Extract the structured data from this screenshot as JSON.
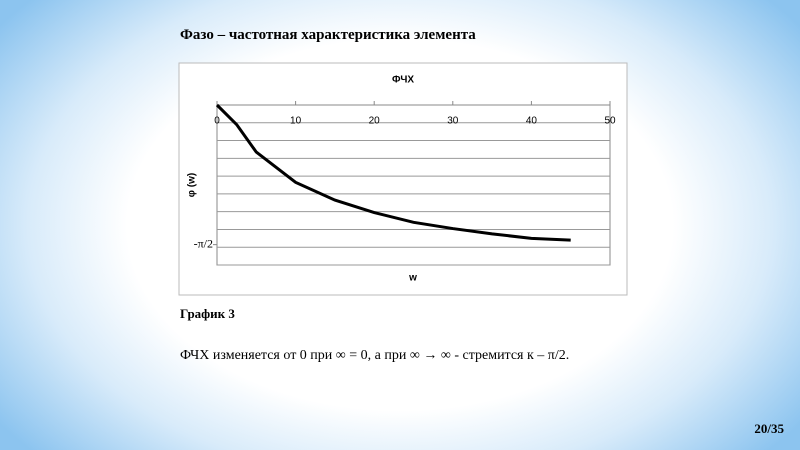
{
  "slide": {
    "title": "Фазо – частотная характеристика элемента",
    "caption": "График 3",
    "text": "ФЧХ изменяется от 0 при ∞ = 0, а при ∞ → ∞ - стремится к – π/2.",
    "page": "20/35"
  },
  "chart_data": {
    "type": "line",
    "title": "ФЧХ",
    "x_label": "w",
    "y_label": "φ (w)",
    "x": [
      0,
      2.5,
      5,
      10,
      15,
      20,
      25,
      30,
      35,
      40,
      45
    ],
    "series": [
      {
        "color": "#000000",
        "values": [
          0,
          -0.22,
          -0.53,
          -0.87,
          -1.07,
          -1.21,
          -1.32,
          -1.39,
          -1.45,
          -1.5,
          -1.52
        ]
      }
    ],
    "xlim": [
      0,
      50
    ],
    "xticks": [
      0,
      10,
      20,
      30,
      40,
      50
    ],
    "ylim": [
      -1.8,
      0
    ],
    "yticks": [
      {
        "value": -1.5708,
        "label": "-π/2"
      }
    ],
    "grid_lines": [
      -0.2,
      -0.4,
      -0.6,
      -0.8,
      -1,
      -1.2,
      -1.4,
      -1.6,
      -1.8
    ]
  }
}
